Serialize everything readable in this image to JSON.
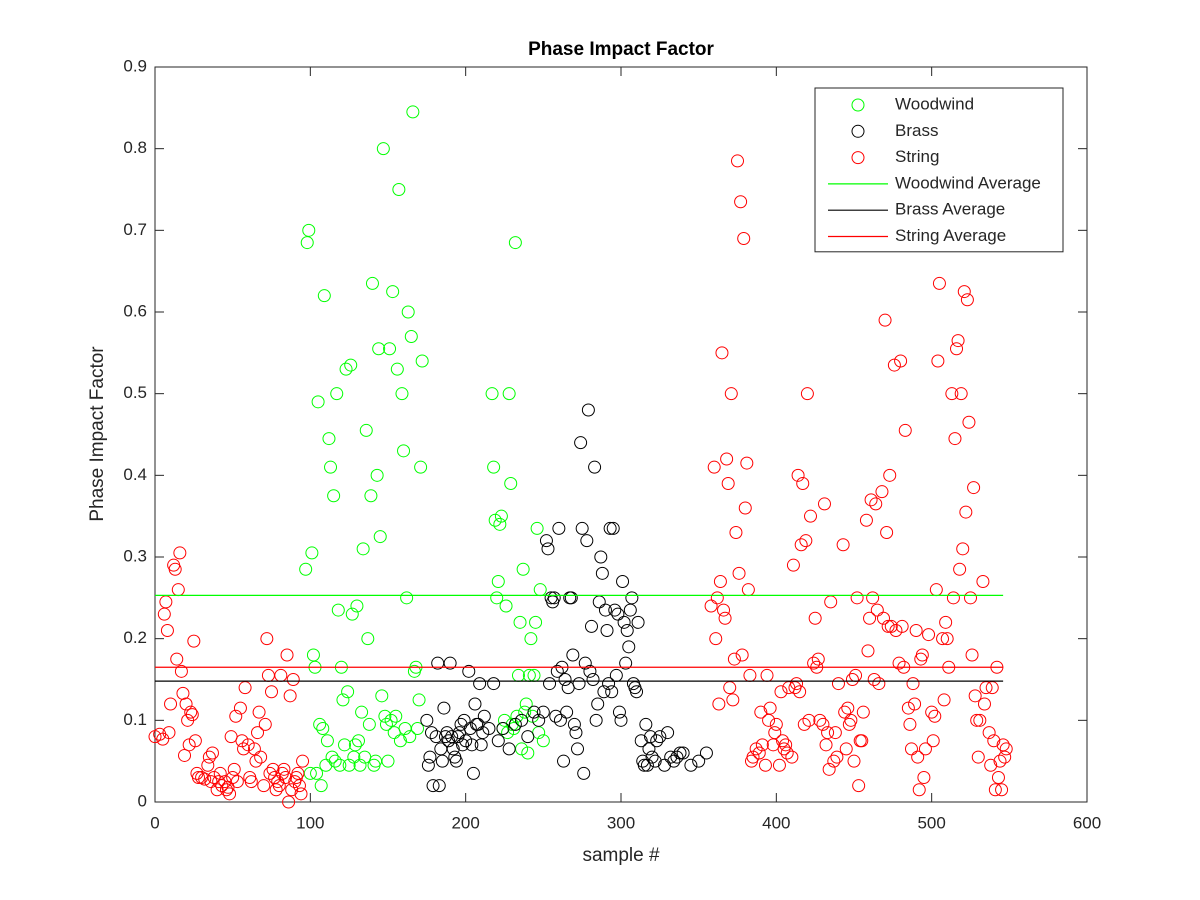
{
  "chart_data": {
    "type": "scatter",
    "title": "Phase Impact Factor",
    "x_label": "sample #",
    "y_label": "Phase Impact Factor",
    "xlim": [
      0,
      600
    ],
    "ylim": [
      0,
      0.9
    ],
    "xticks": [
      0,
      100,
      200,
      300,
      400,
      500,
      600
    ],
    "yticks": [
      0,
      0.1,
      0.2,
      0.3,
      0.4,
      0.5,
      0.6,
      0.7,
      0.8,
      0.9
    ],
    "grid": false,
    "legend": "upper right",
    "series": [
      {
        "name": "Woodwind",
        "color": "#00ff00",
        "style": "marker",
        "x": [
          97,
          98,
          99,
          100,
          101,
          102,
          103,
          104,
          105,
          106,
          107,
          108,
          109,
          110,
          111,
          112,
          113,
          114,
          115,
          116,
          117,
          118,
          119,
          120,
          121,
          122,
          123,
          124,
          125,
          126,
          127,
          128,
          129,
          130,
          131,
          132,
          133,
          134,
          135,
          136,
          137,
          138,
          139,
          140,
          141,
          142,
          143,
          144,
          145,
          146,
          147,
          148,
          149,
          150,
          151,
          152,
          153,
          154,
          155,
          156,
          157,
          158,
          159,
          160,
          161,
          162,
          163,
          164,
          165,
          166,
          167,
          168,
          169,
          170,
          171,
          172,
          217,
          218,
          219,
          220,
          221,
          222,
          223,
          224,
          225,
          226,
          227,
          228,
          229,
          230,
          231,
          232,
          233,
          234,
          235,
          236,
          237,
          238,
          239,
          240,
          241,
          242,
          243,
          244,
          245,
          246,
          247,
          248,
          250
        ],
        "values": [
          0.285,
          0.685,
          0.7,
          0.035,
          0.305,
          0.18,
          0.165,
          0.035,
          0.49,
          0.095,
          0.02,
          0.09,
          0.62,
          0.045,
          0.075,
          0.445,
          0.41,
          0.055,
          0.375,
          0.05,
          0.5,
          0.235,
          0.045,
          0.165,
          0.125,
          0.07,
          0.53,
          0.135,
          0.045,
          0.535,
          0.23,
          0.055,
          0.07,
          0.24,
          0.075,
          0.045,
          0.11,
          0.31,
          0.055,
          0.455,
          0.2,
          0.095,
          0.375,
          0.635,
          0.045,
          0.05,
          0.4,
          0.555,
          0.325,
          0.13,
          0.8,
          0.105,
          0.095,
          0.05,
          0.555,
          0.1,
          0.625,
          0.085,
          0.105,
          0.53,
          0.75,
          0.075,
          0.5,
          0.43,
          0.09,
          0.25,
          0.6,
          0.08,
          0.57,
          0.845,
          0.16,
          0.165,
          0.09,
          0.125,
          0.41,
          0.54,
          0.5,
          0.41,
          0.345,
          0.25,
          0.27,
          0.34,
          0.35,
          0.09,
          0.1,
          0.24,
          0.085,
          0.5,
          0.39,
          0.095,
          0.09,
          0.685,
          0.105,
          0.155,
          0.22,
          0.065,
          0.285,
          0.11,
          0.12,
          0.06,
          0.155,
          0.2,
          0.105,
          0.155,
          0.22,
          0.335,
          0.085,
          0.26,
          0.075
        ]
      },
      {
        "name": "Brass",
        "color": "#000000",
        "style": "marker",
        "x": [
          175,
          176,
          177,
          178,
          179,
          181,
          182,
          183,
          184,
          185,
          186,
          187,
          188,
          189,
          190,
          191,
          192,
          193,
          194,
          195,
          196,
          197,
          198,
          199,
          200,
          202,
          203,
          204,
          205,
          206,
          207,
          208,
          209,
          210,
          211,
          212,
          215,
          218,
          221,
          224,
          228,
          232,
          236,
          240,
          244,
          247,
          250,
          252,
          253,
          254,
          255,
          256,
          257,
          258,
          259,
          260,
          261,
          262,
          263,
          264,
          265,
          266,
          267,
          268,
          269,
          270,
          271,
          272,
          273,
          274,
          275,
          276,
          277,
          278,
          279,
          280,
          281,
          282,
          283,
          284,
          285,
          286,
          287,
          288,
          289,
          290,
          291,
          292,
          293,
          294,
          295,
          296,
          297,
          298,
          299,
          300,
          301,
          302,
          303,
          304,
          305,
          306,
          307,
          308,
          309,
          310,
          311,
          313,
          314,
          315,
          316,
          317,
          318,
          319,
          320,
          322,
          323,
          325,
          328,
          330,
          332,
          334,
          336,
          338,
          340,
          345,
          350,
          355
        ],
        "values": [
          0.1,
          0.045,
          0.055,
          0.085,
          0.02,
          0.08,
          0.17,
          0.02,
          0.065,
          0.05,
          0.115,
          0.08,
          0.085,
          0.075,
          0.17,
          0.08,
          0.065,
          0.055,
          0.05,
          0.08,
          0.085,
          0.095,
          0.07,
          0.1,
          0.075,
          0.16,
          0.09,
          0.07,
          0.035,
          0.12,
          0.095,
          0.095,
          0.145,
          0.07,
          0.085,
          0.105,
          0.09,
          0.145,
          0.075,
          0.09,
          0.065,
          0.095,
          0.1,
          0.08,
          0.11,
          0.1,
          0.11,
          0.32,
          0.31,
          0.145,
          0.25,
          0.245,
          0.25,
          0.105,
          0.16,
          0.335,
          0.1,
          0.165,
          0.05,
          0.15,
          0.11,
          0.14,
          0.25,
          0.25,
          0.18,
          0.095,
          0.085,
          0.065,
          0.145,
          0.44,
          0.335,
          0.035,
          0.17,
          0.32,
          0.48,
          0.16,
          0.215,
          0.15,
          0.41,
          0.1,
          0.12,
          0.245,
          0.3,
          0.28,
          0.135,
          0.235,
          0.21,
          0.145,
          0.335,
          0.135,
          0.335,
          0.235,
          0.155,
          0.23,
          0.11,
          0.1,
          0.27,
          0.22,
          0.17,
          0.21,
          0.19,
          0.235,
          0.25,
          0.145,
          0.14,
          0.135,
          0.22,
          0.075,
          0.05,
          0.045,
          0.095,
          0.045,
          0.065,
          0.08,
          0.055,
          0.05,
          0.075,
          0.08,
          0.045,
          0.085,
          0.055,
          0.05,
          0.055,
          0.06,
          0.06,
          0.045,
          0.05,
          0.06
        ]
      },
      {
        "name": "String",
        "color": "#ff0000",
        "style": "marker",
        "x": [
          0,
          3,
          5,
          6,
          7,
          8,
          9,
          10,
          12,
          13,
          14,
          15,
          16,
          17,
          18,
          19,
          20,
          21,
          22,
          23,
          24,
          25,
          26,
          27,
          28,
          30,
          32,
          34,
          35,
          36,
          37,
          38,
          40,
          41,
          42,
          43,
          45,
          46,
          47,
          48,
          49,
          50,
          51,
          52,
          53,
          55,
          56,
          57,
          58,
          60,
          61,
          62,
          64,
          65,
          66,
          67,
          68,
          70,
          71,
          72,
          73,
          74,
          75,
          76,
          77,
          78,
          79,
          80,
          81,
          82,
          83,
          84,
          85,
          86,
          87,
          88,
          89,
          90,
          91,
          92,
          93,
          94,
          95,
          358,
          360,
          361,
          362,
          363,
          364,
          365,
          366,
          367,
          368,
          369,
          370,
          371,
          372,
          373,
          374,
          375,
          376,
          377,
          378,
          379,
          380,
          381,
          382,
          383,
          384,
          385,
          387,
          389,
          390,
          391,
          393,
          394,
          395,
          396,
          398,
          399,
          400,
          402,
          403,
          404,
          405,
          406,
          407,
          408,
          410,
          411,
          412,
          413,
          414,
          415,
          416,
          417,
          418,
          419,
          420,
          421,
          422,
          424,
          425,
          426,
          427,
          428,
          430,
          431,
          432,
          433,
          434,
          435,
          437,
          438,
          439,
          440,
          443,
          444,
          445,
          446,
          447,
          448,
          449,
          450,
          451,
          452,
          453,
          454,
          455,
          456,
          458,
          459,
          460,
          461,
          462,
          463,
          464,
          465,
          466,
          468,
          469,
          470,
          471,
          472,
          473,
          474,
          476,
          477,
          479,
          480,
          481,
          482,
          483,
          485,
          486,
          487,
          488,
          489,
          490,
          491,
          492,
          493,
          494,
          495,
          496,
          498,
          500,
          501,
          502,
          503,
          504,
          505,
          507,
          508,
          509,
          510,
          511,
          513,
          514,
          515,
          516,
          517,
          518,
          519,
          520,
          521,
          522,
          523,
          524,
          525,
          526,
          527,
          528,
          529,
          530,
          531,
          533,
          534,
          535,
          537,
          538,
          539,
          540,
          541,
          542,
          543,
          544,
          545,
          546,
          547,
          548
        ],
        "values": [
          0.08,
          0.083,
          0.077,
          0.23,
          0.245,
          0.21,
          0.085,
          0.12,
          0.29,
          0.285,
          0.175,
          0.26,
          0.305,
          0.16,
          0.133,
          0.057,
          0.12,
          0.1,
          0.07,
          0.11,
          0.107,
          0.197,
          0.075,
          0.035,
          0.03,
          0.03,
          0.028,
          0.045,
          0.055,
          0.025,
          0.06,
          0.03,
          0.015,
          0.025,
          0.035,
          0.02,
          0.025,
          0.015,
          0.018,
          0.01,
          0.08,
          0.03,
          0.04,
          0.105,
          0.025,
          0.115,
          0.075,
          0.065,
          0.14,
          0.07,
          0.03,
          0.025,
          0.065,
          0.05,
          0.085,
          0.11,
          0.055,
          0.02,
          0.095,
          0.2,
          0.155,
          0.035,
          0.135,
          0.04,
          0.03,
          0.015,
          0.025,
          0.02,
          0.155,
          0.035,
          0.04,
          0.03,
          0.18,
          0.0,
          0.13,
          0.015,
          0.15,
          0.025,
          0.03,
          0.035,
          0.02,
          0.01,
          0.05,
          0.24,
          0.41,
          0.2,
          0.25,
          0.12,
          0.27,
          0.55,
          0.235,
          0.225,
          0.42,
          0.39,
          0.14,
          0.5,
          0.125,
          0.175,
          0.33,
          0.785,
          0.28,
          0.735,
          0.18,
          0.69,
          0.36,
          0.415,
          0.26,
          0.155,
          0.05,
          0.055,
          0.065,
          0.06,
          0.11,
          0.07,
          0.045,
          0.155,
          0.1,
          0.115,
          0.07,
          0.085,
          0.095,
          0.045,
          0.135,
          0.075,
          0.065,
          0.07,
          0.06,
          0.14,
          0.055,
          0.29,
          0.14,
          0.145,
          0.4,
          0.135,
          0.315,
          0.39,
          0.095,
          0.32,
          0.5,
          0.1,
          0.35,
          0.17,
          0.225,
          0.165,
          0.175,
          0.1,
          0.095,
          0.365,
          0.07,
          0.085,
          0.04,
          0.245,
          0.05,
          0.085,
          0.055,
          0.145,
          0.315,
          0.11,
          0.065,
          0.115,
          0.095,
          0.1,
          0.15,
          0.05,
          0.155,
          0.25,
          0.02,
          0.075,
          0.075,
          0.11,
          0.345,
          0.185,
          0.225,
          0.37,
          0.25,
          0.15,
          0.365,
          0.235,
          0.145,
          0.38,
          0.225,
          0.59,
          0.33,
          0.215,
          0.4,
          0.215,
          0.535,
          0.21,
          0.17,
          0.54,
          0.215,
          0.165,
          0.455,
          0.115,
          0.095,
          0.065,
          0.145,
          0.12,
          0.21,
          0.055,
          0.015,
          0.175,
          0.18,
          0.03,
          0.065,
          0.205,
          0.11,
          0.075,
          0.105,
          0.26,
          0.54,
          0.635,
          0.2,
          0.125,
          0.22,
          0.2,
          0.165,
          0.5,
          0.25,
          0.445,
          0.555,
          0.565,
          0.285,
          0.5,
          0.31,
          0.625,
          0.355,
          0.615,
          0.465,
          0.25,
          0.18,
          0.385,
          0.13,
          0.1,
          0.055,
          0.1,
          0.27,
          0.12,
          0.14,
          0.085,
          0.045,
          0.14,
          0.075,
          0.015,
          0.165,
          0.03,
          0.05,
          0.015,
          0.07,
          0.055,
          0.065
        ]
      },
      {
        "name": "Woodwind Average",
        "color": "#00ff00",
        "style": "line",
        "x": [
          0,
          546
        ],
        "values": [
          0.253,
          0.253
        ]
      },
      {
        "name": "Brass Average",
        "color": "#000000",
        "style": "line",
        "x": [
          0,
          546
        ],
        "values": [
          0.148,
          0.148
        ]
      },
      {
        "name": "String Average",
        "color": "#ff0000",
        "style": "line",
        "x": [
          0,
          546
        ],
        "values": [
          0.165,
          0.165
        ]
      }
    ]
  }
}
